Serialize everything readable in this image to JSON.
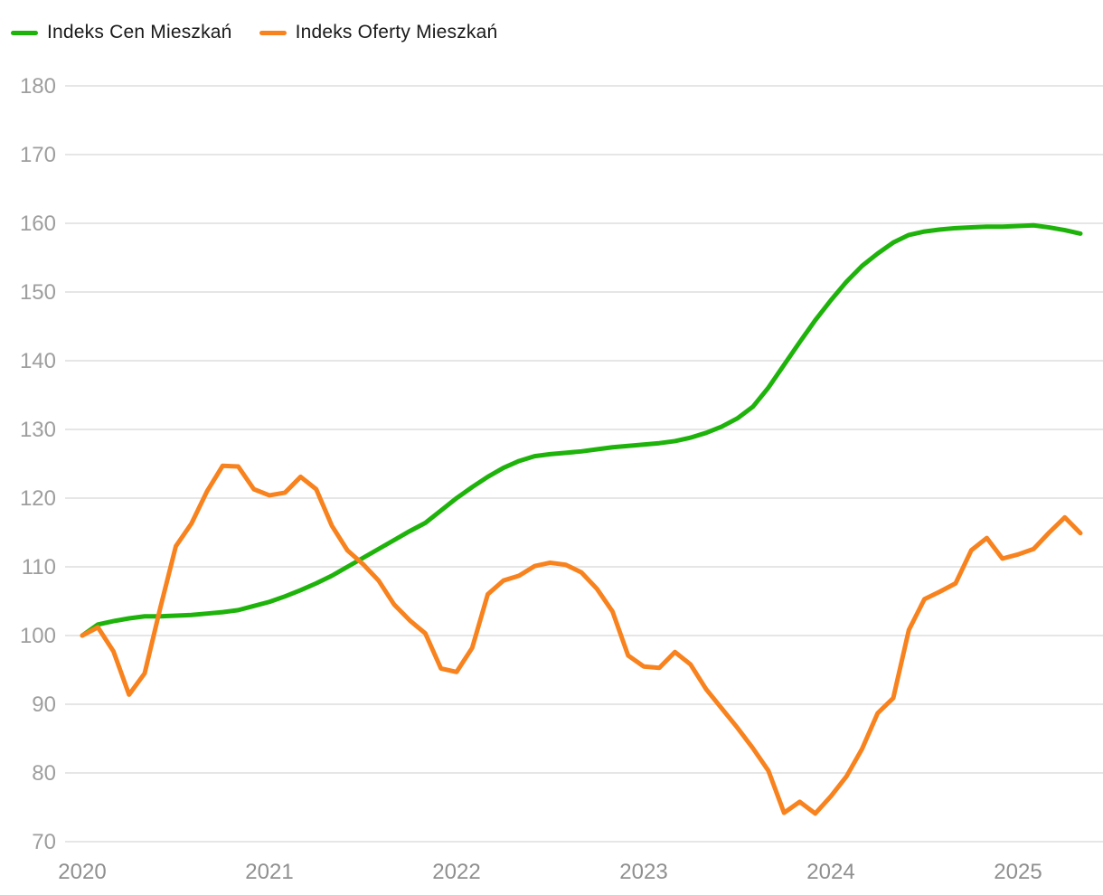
{
  "chart_data": {
    "type": "line",
    "title": "",
    "xlabel": "",
    "ylabel": "",
    "x_unit": "month",
    "x_start": "2020-01",
    "x_end": "2025-05",
    "x_tick_labels": [
      "2020",
      "2021",
      "2022",
      "2023",
      "2024",
      "2025"
    ],
    "x_tick_month_index": [
      0,
      12,
      24,
      36,
      48,
      60
    ],
    "y_ticks": [
      70,
      80,
      90,
      100,
      110,
      120,
      130,
      140,
      150,
      160,
      170,
      180
    ],
    "ylim": [
      70,
      183
    ],
    "grid": "horizontal-only",
    "legend_position": "top-left",
    "colors": {
      "background": "#ffffff",
      "grid": "#e6e6e6",
      "y_tick_label": "#9e9e9e",
      "x_tick_label": "#8f8f8f",
      "legend_text": "#1a1a1a"
    },
    "series": [
      {
        "name": "Indeks Cen Mieszkań",
        "color": "#1eb30a",
        "values": [
          100.0,
          101.6,
          102.1,
          102.5,
          102.8,
          102.8,
          102.9,
          103.0,
          103.2,
          103.4,
          103.7,
          104.3,
          104.9,
          105.7,
          106.6,
          107.6,
          108.7,
          110.0,
          111.3,
          112.6,
          113.9,
          115.2,
          116.4,
          118.2,
          120.0,
          121.6,
          123.1,
          124.4,
          125.4,
          126.1,
          126.4,
          126.6,
          126.8,
          127.1,
          127.4,
          127.6,
          127.8,
          128.0,
          128.3,
          128.8,
          129.5,
          130.4,
          131.6,
          133.3,
          136.1,
          139.4,
          142.7,
          145.9,
          148.8,
          151.5,
          153.8,
          155.6,
          157.2,
          158.3,
          158.8,
          159.1,
          159.3,
          159.4,
          159.5,
          159.5,
          159.6,
          159.7,
          159.4,
          159.0,
          158.5
        ]
      },
      {
        "name": "Indeks Oferty Mieszkań",
        "color": "#f8821d",
        "values": [
          100.0,
          101.2,
          97.7,
          91.4,
          94.5,
          104.0,
          113.0,
          116.3,
          121.0,
          124.7,
          124.6,
          121.3,
          120.4,
          120.8,
          123.1,
          121.3,
          116.0,
          112.4,
          110.4,
          108.0,
          104.5,
          102.2,
          100.3,
          95.2,
          94.7,
          98.2,
          106.0,
          108.0,
          108.7,
          110.1,
          110.6,
          110.3,
          109.2,
          106.8,
          103.5,
          97.1,
          95.5,
          95.3,
          97.6,
          95.8,
          92.2,
          89.4,
          86.6,
          83.6,
          80.3,
          74.2,
          75.8,
          74.1,
          76.6,
          79.5,
          83.5,
          88.7,
          90.9,
          100.8,
          105.3,
          106.4,
          107.6,
          112.4,
          114.2,
          111.2,
          111.8,
          112.6,
          115.0,
          117.2,
          114.9
        ]
      }
    ]
  }
}
